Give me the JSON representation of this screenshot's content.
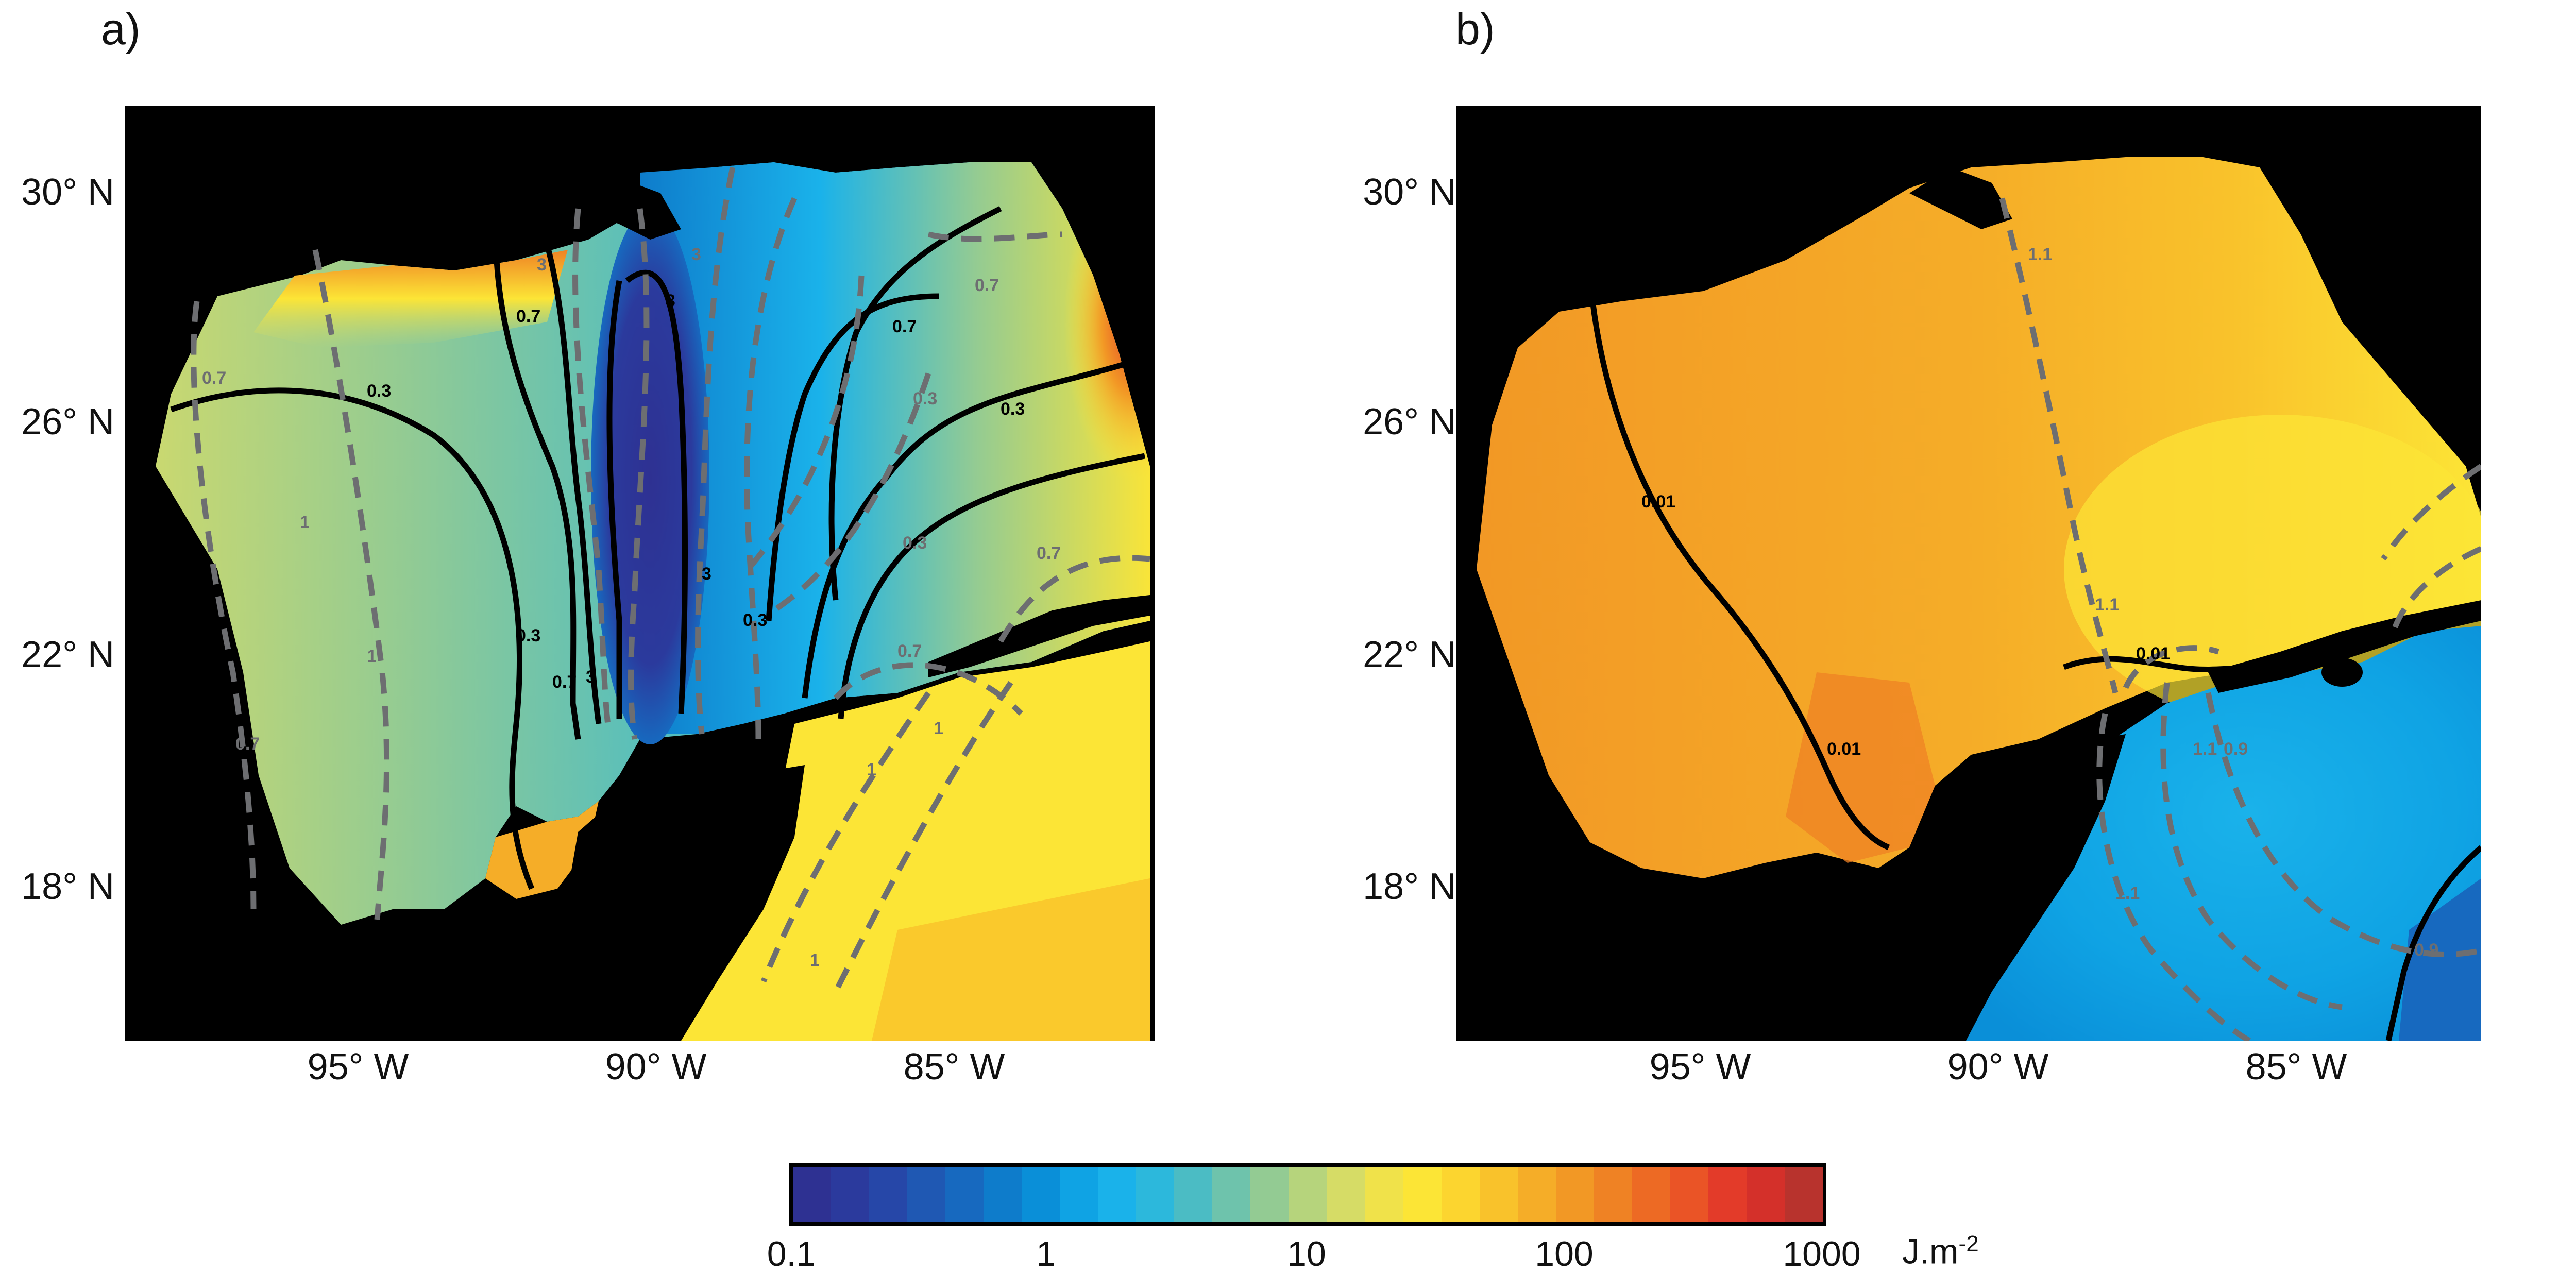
{
  "panels": [
    {
      "label": "a)"
    },
    {
      "label": "b)"
    }
  ],
  "lat_labels": [
    "30° N",
    "26° N",
    "22° N",
    "18° N"
  ],
  "lon_labels": [
    "95° W",
    "90° W",
    "85° W"
  ],
  "contours_a": {
    "solid": [
      "0.3",
      "0.7",
      "3",
      "3",
      "0.7",
      "0.3",
      "0.7",
      "0.3",
      "0.3",
      "3"
    ],
    "dashed": [
      "1",
      "0.7",
      "1",
      "0.7",
      "3",
      "3",
      "1",
      "0.7",
      "0.3",
      "0.3",
      "0.7",
      "0.7",
      "1",
      "1"
    ]
  },
  "contours_b": {
    "solid": [
      "0.01",
      "0.01",
      "0.01"
    ],
    "dashed": [
      "1.1",
      "1.1",
      "0.9",
      "1.1",
      "0.9",
      "1.1"
    ]
  },
  "colorbar": {
    "ticks": [
      "0.1",
      "1",
      "10",
      "100",
      "1000"
    ],
    "unit": "J.m",
    "unit_sup": "-2",
    "scale": "log",
    "colors": [
      "#2e3192",
      "#2b3a9d",
      "#2647a8",
      "#1f58b3",
      "#1769bf",
      "#0e7ccb",
      "#0a8fd8",
      "#0fa3e4",
      "#1ab2ea",
      "#2cb8dc",
      "#4bbcc4",
      "#6ec3ac",
      "#93cb93",
      "#b6d47c",
      "#d6dc66",
      "#f0e24a",
      "#fce536",
      "#fcd52f",
      "#f9c22b",
      "#f5ad28",
      "#f29825",
      "#ef8224",
      "#ed6a24",
      "#ea5426",
      "#e33b29",
      "#d4302a",
      "#b8332d"
    ]
  },
  "colors": {
    "land": "#000000",
    "dashed_contour": "#6d6e71",
    "solid_contour": "#000000"
  }
}
